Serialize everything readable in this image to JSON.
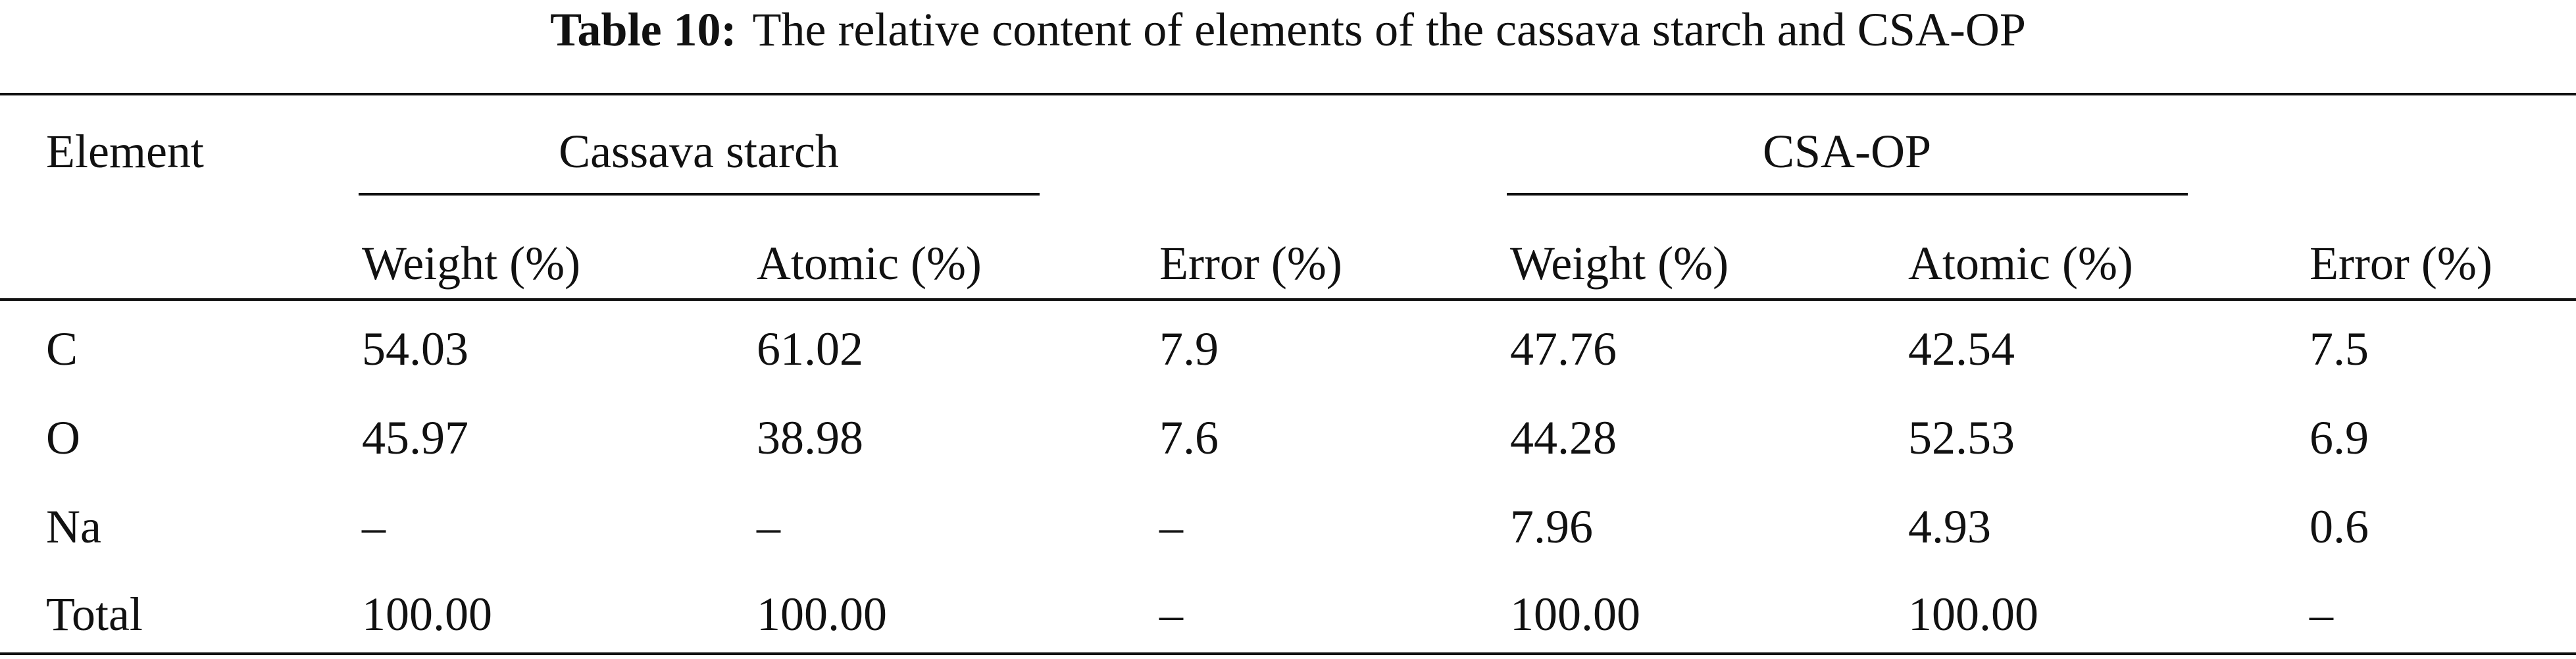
{
  "title": {
    "label": "Table 10:",
    "text": "The relative content of elements of the cassava starch and CSA-OP"
  },
  "table": {
    "element_header": "Element",
    "groups": [
      "Cassava starch",
      "CSA-OP"
    ],
    "subheaders": [
      "Weight (%)",
      "Atomic (%)",
      "Error (%)",
      "Weight (%)",
      "Atomic (%)",
      "Error (%)"
    ],
    "rows": [
      [
        "C",
        "54.03",
        "61.02",
        "7.9",
        "47.76",
        "42.54",
        "7.5"
      ],
      [
        "O",
        "45.97",
        "38.98",
        "7.6",
        "44.28",
        "52.53",
        "6.9"
      ],
      [
        "Na",
        "–",
        "–",
        "–",
        "7.96",
        "4.93",
        "0.6"
      ],
      [
        "Total",
        "100.00",
        "100.00",
        "–",
        "100.00",
        "100.00",
        "–"
      ]
    ]
  }
}
